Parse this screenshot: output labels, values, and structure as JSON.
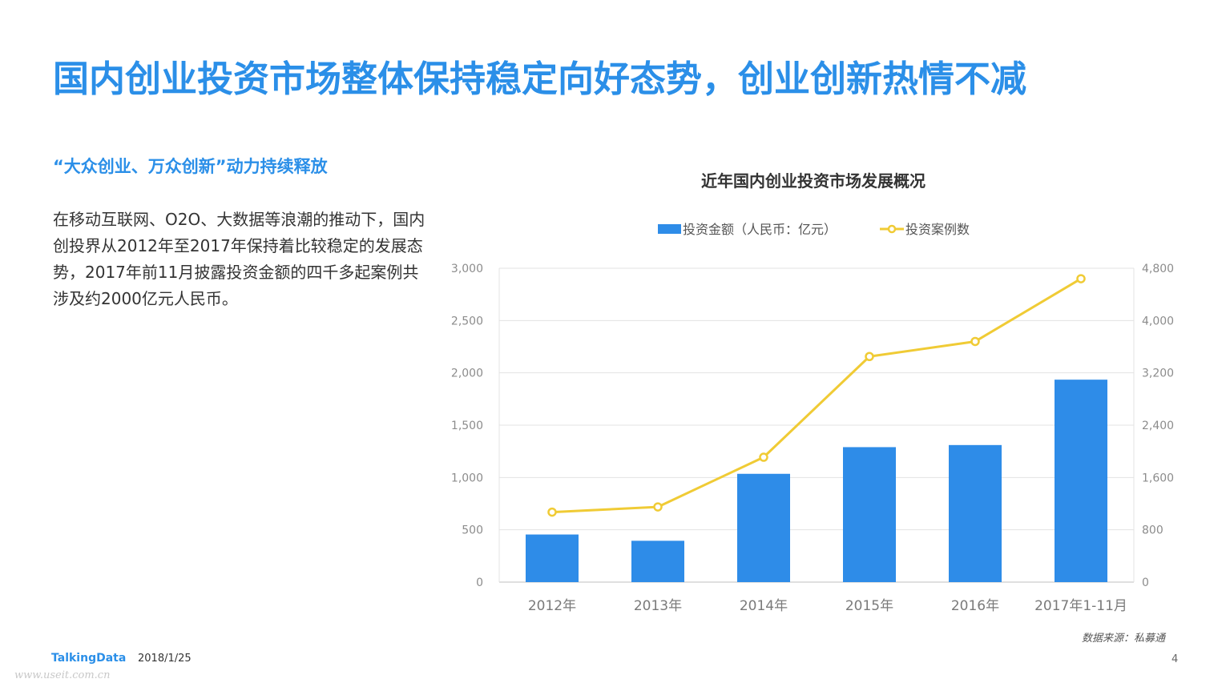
{
  "slide": {
    "title": "国内创业投资市场整体保持稳定向好态势，创业创新热情不减",
    "subhead": "“大众创业、万众创新”动力持续释放",
    "body": "在移动互联网、O2O、大数据等浪潮的推动下，国内创投界从2012年至2017年保持着比较稳定的发展态势，2017年前11月披露投资金额的四千多起案例共涉及约2000亿元人民币。",
    "source": "数据来源：私募通"
  },
  "footer": {
    "logo": "TalkingData",
    "date": "2018/1/25",
    "page": "4",
    "watermark": "www.useit.com.cn"
  },
  "chart_data": {
    "type": "bar",
    "title": "近年国内创业投资市场发展概况",
    "categories": [
      "2012年",
      "2013年",
      "2014年",
      "2015年",
      "2016年",
      "2017年1-11月"
    ],
    "series": [
      {
        "name": "投资金额（人民币：亿元）",
        "type": "bar",
        "axis": "left",
        "color": "#2e8ce8",
        "values": [
          455,
          395,
          1035,
          1290,
          1310,
          1935
        ]
      },
      {
        "name": "投资案例数",
        "type": "line",
        "axis": "right",
        "color": "#f0cb35",
        "values": [
          1070,
          1150,
          1910,
          3450,
          3680,
          4640
        ]
      }
    ],
    "y_left": {
      "min": 0,
      "max": 3000,
      "ticks": [
        "0",
        "500",
        "1,000",
        "1,500",
        "2,000",
        "2,500",
        "3,000"
      ]
    },
    "y_right": {
      "min": 0,
      "max": 4800,
      "ticks": [
        "0",
        "800",
        "1,600",
        "2,400",
        "3,200",
        "4,000",
        "4,800"
      ]
    },
    "grid": true,
    "legend_position": "top"
  }
}
